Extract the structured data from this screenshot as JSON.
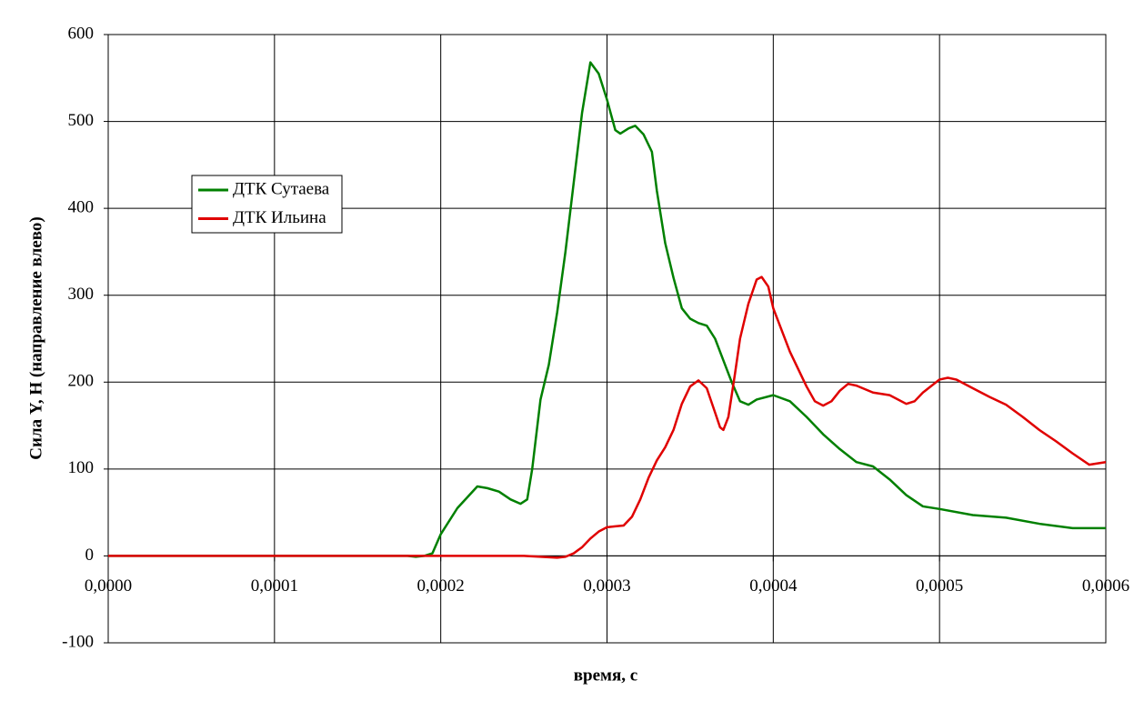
{
  "chart_data": {
    "type": "line",
    "x_label": "время, с",
    "y_label": "Сила Y, Н (направление влево)",
    "xlim": [
      0,
      0.0006
    ],
    "xticks": [
      {
        "value": 0,
        "label": "0,0000"
      },
      {
        "value": 0.0001,
        "label": "0,0001"
      },
      {
        "value": 0.0002,
        "label": "0,0002"
      },
      {
        "value": 0.0003,
        "label": "0,0003"
      },
      {
        "value": 0.0004,
        "label": "0,0004"
      },
      {
        "value": 0.0005,
        "label": "0,0005"
      },
      {
        "value": 0.0006,
        "label": "0,0006"
      }
    ],
    "ylim": [
      -100,
      600
    ],
    "yticks": [
      -100,
      0,
      100,
      200,
      300,
      400,
      500,
      600
    ],
    "grid": true,
    "legend": "upper-left",
    "series": [
      {
        "name": "ДТК Сутаева",
        "color": "#008000",
        "x": [
          0,
          0.00018,
          0.000185,
          0.00019,
          0.000195,
          0.0002,
          0.00021,
          0.000222,
          0.000228,
          0.000235,
          0.000242,
          0.000248,
          0.000252,
          0.000255,
          0.00026,
          0.000265,
          0.00027,
          0.000275,
          0.00028,
          0.000285,
          0.00029,
          0.000295,
          0.0003,
          0.000305,
          0.000308,
          0.000313,
          0.000317,
          0.000322,
          0.000327,
          0.00033,
          0.000335,
          0.00034,
          0.000345,
          0.00035,
          0.000355,
          0.00036,
          0.000365,
          0.00037,
          0.000375,
          0.00038,
          0.000385,
          0.00039,
          0.0004,
          0.00041,
          0.00042,
          0.00043,
          0.00044,
          0.00045,
          0.00046,
          0.00047,
          0.00048,
          0.00049,
          0.0005,
          0.00052,
          0.00054,
          0.00056,
          0.00058,
          0.0006
        ],
        "values": [
          0,
          0,
          -1,
          0,
          3,
          25,
          55,
          80,
          78,
          74,
          65,
          60,
          65,
          100,
          180,
          220,
          280,
          350,
          430,
          510,
          568,
          555,
          525,
          490,
          486,
          492,
          495,
          485,
          465,
          420,
          360,
          320,
          285,
          273,
          268,
          265,
          250,
          225,
          200,
          178,
          174,
          180,
          185,
          178,
          160,
          140,
          123,
          108,
          103,
          88,
          70,
          57,
          54,
          47,
          44,
          37,
          32,
          32
        ]
      },
      {
        "name": "ДТК Ильина",
        "color": "#e00000",
        "x": [
          0,
          0.00025,
          0.00026,
          0.00027,
          0.000275,
          0.00028,
          0.000285,
          0.00029,
          0.000295,
          0.0003,
          0.000305,
          0.00031,
          0.000315,
          0.00032,
          0.000325,
          0.00033,
          0.000335,
          0.00034,
          0.000345,
          0.00035,
          0.000355,
          0.00036,
          0.000365,
          0.000368,
          0.00037,
          0.000373,
          0.000377,
          0.00038,
          0.000385,
          0.00039,
          0.000393,
          0.000397,
          0.0004,
          0.00041,
          0.00042,
          0.000425,
          0.00043,
          0.000435,
          0.00044,
          0.000445,
          0.00045,
          0.00046,
          0.00047,
          0.00048,
          0.000485,
          0.00049,
          0.0005,
          0.000505,
          0.00051,
          0.00052,
          0.00053,
          0.00054,
          0.00055,
          0.00056,
          0.00057,
          0.00058,
          0.00059,
          0.0006
        ],
        "values": [
          0,
          0,
          -1,
          -2,
          -1,
          3,
          10,
          20,
          28,
          33,
          34,
          35,
          45,
          65,
          90,
          110,
          125,
          145,
          175,
          195,
          202,
          193,
          165,
          148,
          145,
          160,
          210,
          250,
          290,
          318,
          321,
          310,
          285,
          235,
          195,
          178,
          173,
          178,
          190,
          198,
          196,
          188,
          185,
          175,
          178,
          188,
          203,
          205,
          203,
          193,
          183,
          174,
          160,
          145,
          132,
          118,
          105,
          108
        ]
      }
    ]
  }
}
